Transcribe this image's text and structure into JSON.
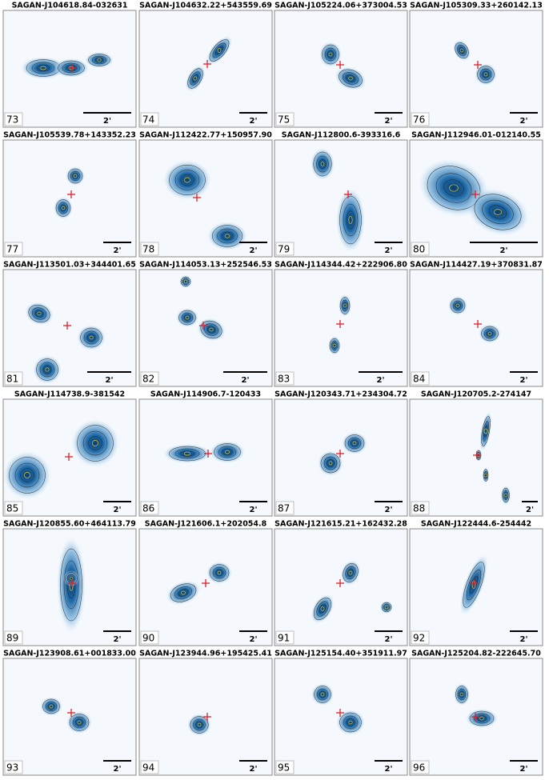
{
  "panels": [
    {
      "title": "SAGAN-J104618.84-032631",
      "number": 73,
      "scale": "2'"
    },
    {
      "title": "SAGAN-J104632.22+543559.69",
      "number": 74,
      "scale": "2'"
    },
    {
      "title": "SAGAN-J105224.06+373004.53",
      "number": 75,
      "scale": "2'"
    },
    {
      "title": "SAGAN-J105309.33+260142.13",
      "number": 76,
      "scale": "2'"
    },
    {
      "title": "SAGAN-J105539.78+143352.23",
      "number": 77,
      "scale": "2'"
    },
    {
      "title": "SAGAN-J112422.77+150957.90",
      "number": 78,
      "scale": "2'"
    },
    {
      "title": "SAGAN-J112800.6-393316.6",
      "number": 79,
      "scale": "2'"
    },
    {
      "title": "SAGAN-J112946.01-012140.55",
      "number": 80,
      "scale": "2'"
    },
    {
      "title": "SAGAN-J113501.03+344401.65",
      "number": 81,
      "scale": "2'"
    },
    {
      "title": "SAGAN-J114053.13+252546.53",
      "number": 82,
      "scale": "2'"
    },
    {
      "title": "SAGAN-J114344.42+222906.80",
      "number": 83,
      "scale": "2'"
    },
    {
      "title": "SAGAN-J114427.19+370831.87",
      "number": 84,
      "scale": "2'"
    },
    {
      "title": "SAGAN-J114738.9-381542",
      "number": 85,
      "scale": "2'"
    },
    {
      "title": "SAGAN-J114906.7-120433",
      "number": 86,
      "scale": "2'"
    },
    {
      "title": "SAGAN-J120343.71+234304.72",
      "number": 87,
      "scale": "2'"
    },
    {
      "title": "SAGAN-J120705.2-274147",
      "number": 88,
      "scale": "2'"
    },
    {
      "title": "SAGAN-J120855.60+464113.79",
      "number": 89,
      "scale": "2'"
    },
    {
      "title": "SAGAN-J121606.1+202054.8",
      "number": 90,
      "scale": "2'"
    },
    {
      "title": "SAGAN-J121615.21+162432.28",
      "number": 91,
      "scale": "2'"
    },
    {
      "title": "SAGAN-J122444.6-254442",
      "number": 92,
      "scale": "2'"
    },
    {
      "title": "SAGAN-J123908.61+001833.00",
      "number": 93,
      "scale": "2'"
    },
    {
      "title": "SAGAN-J123944.96+195425.41",
      "number": 94,
      "scale": "2'"
    },
    {
      "title": "SAGAN-J125154.40+351911.97",
      "number": 95,
      "scale": "2'"
    },
    {
      "title": "SAGAN-J125204.82-222645.70",
      "number": 96,
      "scale": "2'"
    }
  ]
}
